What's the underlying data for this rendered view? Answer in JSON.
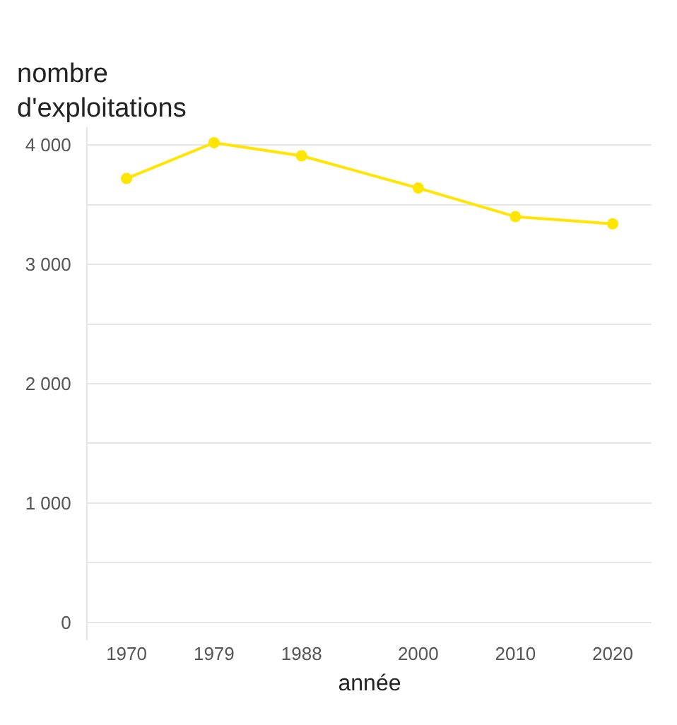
{
  "chart_data": {
    "type": "line",
    "ylabel": "nombre\nd'exploitations",
    "xlabel": "année",
    "x": [
      1970,
      1979,
      1988,
      2000,
      2010,
      2020
    ],
    "series": [
      {
        "color": "#ffe500",
        "values": [
          3720,
          4020,
          3910,
          3640,
          3400,
          3340
        ]
      }
    ],
    "xlim": [
      1966,
      2024
    ],
    "xticks": [
      1970,
      1979,
      1988,
      2000,
      2010,
      2020
    ],
    "ylim": [
      -150,
      4150
    ],
    "yticks": [
      {
        "value": 0,
        "label": "0"
      },
      {
        "value": 500,
        "label": null
      },
      {
        "value": 1000,
        "label": "1 000"
      },
      {
        "value": 1500,
        "label": null
      },
      {
        "value": 2000,
        "label": "2 000"
      },
      {
        "value": 2500,
        "label": null
      },
      {
        "value": 3000,
        "label": "3 000"
      },
      {
        "value": 3500,
        "label": null
      },
      {
        "value": 4000,
        "label": "4 000"
      }
    ],
    "grid": "y",
    "marker": "circle",
    "line_style": "solid",
    "legend": false
  }
}
